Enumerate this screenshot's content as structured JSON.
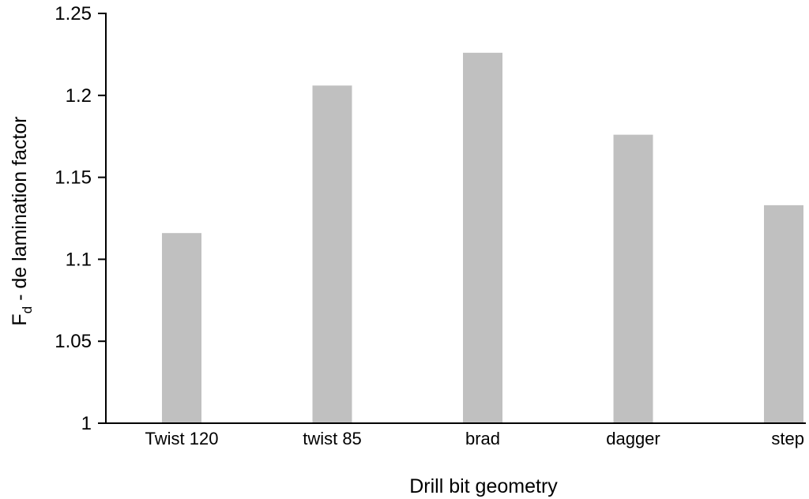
{
  "chart_data": {
    "type": "bar",
    "categories": [
      "Twist 120",
      "twist 85",
      "brad",
      "dagger",
      "step"
    ],
    "series": [
      {
        "values": [
          1.116,
          1.206,
          1.226,
          1.176,
          1.133
        ]
      }
    ],
    "title": "",
    "xlabel": "Drill bit geometry",
    "ylabel_main": "F",
    "ylabel_sub": "d",
    "ylabel_rest": " - de lamination factor",
    "ylim": [
      1,
      1.25
    ],
    "yticks": [
      "1",
      "1.05",
      "1.1",
      "1.15",
      "1.2",
      "1.25"
    ],
    "grid": false,
    "legend": "none",
    "colors": {
      "bar": "#c0c0c0",
      "axis": "#000000",
      "text": "#000000"
    }
  }
}
